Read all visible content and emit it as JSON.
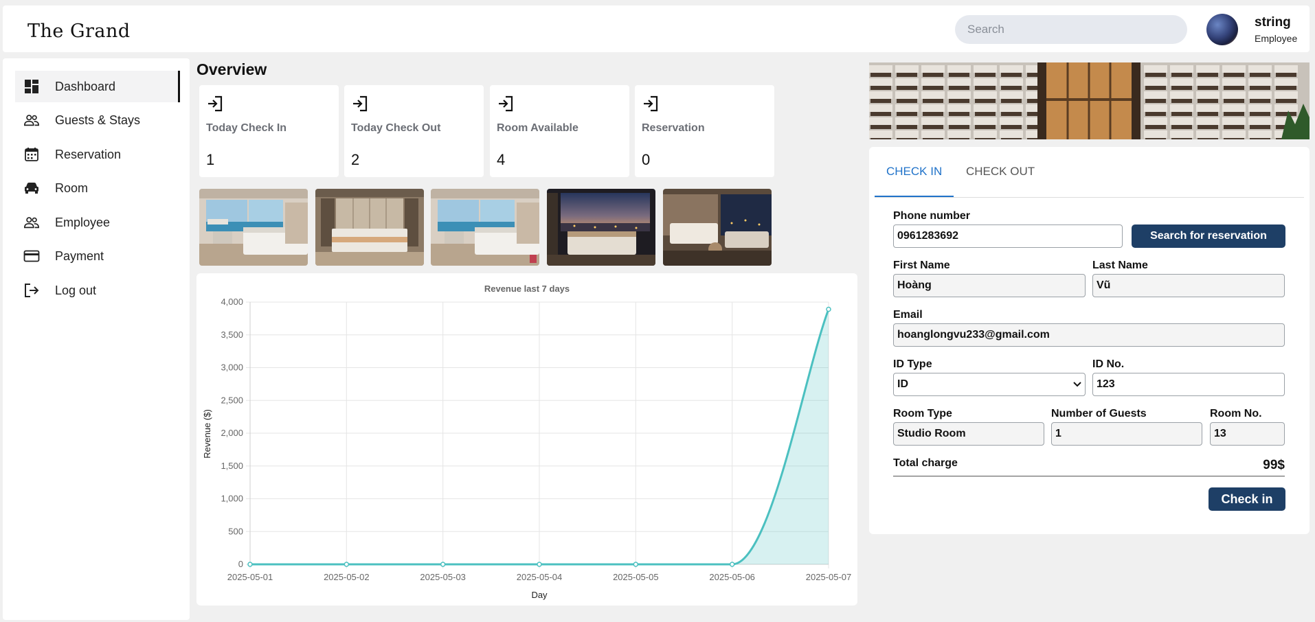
{
  "header": {
    "logo": "The Grand",
    "search_placeholder": "Search",
    "user_name": "string",
    "user_role": "Employee"
  },
  "sidebar": {
    "items": [
      {
        "label": "Dashboard",
        "icon": "dashboard-icon"
      },
      {
        "label": "Guests & Stays",
        "icon": "people-icon"
      },
      {
        "label": "Reservation",
        "icon": "calendar-icon"
      },
      {
        "label": "Room",
        "icon": "car-icon"
      },
      {
        "label": "Employee",
        "icon": "people-icon"
      },
      {
        "label": "Payment",
        "icon": "credit-card-icon"
      },
      {
        "label": "Log out",
        "icon": "logout-icon"
      }
    ]
  },
  "overview": {
    "title": "Overview",
    "stats": [
      {
        "label": "Today Check In",
        "value": "1"
      },
      {
        "label": "Today Check Out",
        "value": "2"
      },
      {
        "label": "Room Available",
        "value": "4"
      },
      {
        "label": "Reservation",
        "value": "0"
      }
    ]
  },
  "chart_data": {
    "type": "line",
    "title": "Revenue last 7 days",
    "xlabel": "Day",
    "ylabel": "Revenue ($)",
    "x": [
      "2025-05-01",
      "2025-05-02",
      "2025-05-03",
      "2025-05-04",
      "2025-05-05",
      "2025-05-06",
      "2025-05-07"
    ],
    "values": [
      0,
      0,
      0,
      0,
      0,
      0,
      3890
    ],
    "ylim": [
      0,
      4000
    ],
    "yticks": [
      "0",
      "500",
      "1,000",
      "1,500",
      "2,000",
      "2,500",
      "3,000",
      "3,500",
      "4,000"
    ],
    "fill": true,
    "grid": true,
    "color": "#4bc0c0"
  },
  "checkin_form": {
    "tabs": [
      "CHECK IN",
      "CHECK OUT"
    ],
    "phone_label": "Phone number",
    "phone_value": "0961283692",
    "search_button": "Search for reservation",
    "first_name_label": "First Name",
    "first_name_value": "Hoàng",
    "last_name_label": "Last Name",
    "last_name_value": "Vũ",
    "email_label": "Email",
    "email_value": "hoanglongvu233@gmail.com",
    "id_type_label": "ID Type",
    "id_type_value": "ID",
    "id_no_label": "ID No.",
    "id_no_value": "123",
    "room_type_label": "Room Type",
    "room_type_value": "Studio Room",
    "guests_label": "Number of Guests",
    "guests_value": "1",
    "room_no_label": "Room No.",
    "room_no_value": "13",
    "total_label": "Total charge",
    "total_value": "99$",
    "checkin_button": "Check in"
  },
  "colors": {
    "accent": "#1f72c9",
    "button": "#1e3f66",
    "chart_line": "#4bc0c0"
  }
}
